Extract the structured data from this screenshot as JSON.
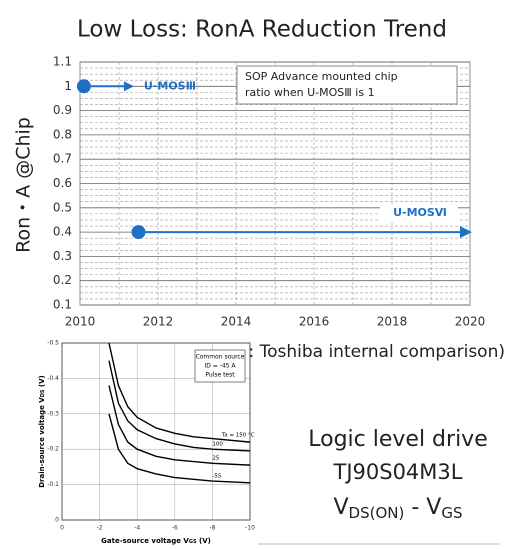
{
  "chart_data": [
    {
      "type": "scatter",
      "title": "Low Loss: RonA Reduction Trend",
      "ylabel": "Ron・A  @Chip",
      "xlim": [
        2010,
        2020
      ],
      "xticks": [
        2010,
        2012,
        2014,
        2016,
        2018,
        2020
      ],
      "ylim": [
        0.1,
        1.1
      ],
      "yticks": [
        0.1,
        0.2,
        0.3,
        0.4,
        0.5,
        0.6,
        0.7,
        0.8,
        0.9,
        1,
        1.1
      ],
      "grid": true,
      "series": [
        {
          "name": "U-MOSⅢ",
          "color": "#1f6fc4",
          "x": [
            2010.1
          ],
          "values": [
            1
          ]
        },
        {
          "name": "U-MOSⅥ",
          "color": "#1f6fc4",
          "x": [
            2011.5
          ],
          "values": [
            0.4
          ]
        }
      ],
      "annotation": [
        "SOP Advance mounted chip",
        "ratio when U-MOSⅢ is 1"
      ],
      "note": "(Note: Toshiba internal comparison)"
    },
    {
      "type": "line",
      "xlabel": [
        "Gate-source voltage  V",
        "GS",
        "  (V)"
      ],
      "ylabel": [
        "Drain-source voltage  V",
        "DS",
        "  (V)"
      ],
      "xlim": [
        0,
        -10
      ],
      "xticks": [
        0,
        -2,
        -4,
        -6,
        -8,
        -10
      ],
      "ylim": [
        0,
        -0.5
      ],
      "yticks": [
        0,
        -0.1,
        -0.2,
        -0.3,
        -0.4,
        -0.5
      ],
      "x": [
        -2.5,
        -3,
        -3.5,
        -4,
        -5,
        -6,
        -7,
        -8,
        -10
      ],
      "series": [
        {
          "name": "Ta = 150 °C",
          "color": "#000",
          "values": [
            -0.5,
            -0.38,
            -0.32,
            -0.29,
            -0.26,
            -0.245,
            -0.235,
            -0.23,
            -0.22
          ]
        },
        {
          "name": "100",
          "color": "#000",
          "values": [
            -0.45,
            -0.33,
            -0.28,
            -0.255,
            -0.23,
            -0.215,
            -0.205,
            -0.2,
            -0.195
          ]
        },
        {
          "name": "25",
          "color": "#000",
          "values": [
            -0.38,
            -0.27,
            -0.22,
            -0.2,
            -0.18,
            -0.17,
            -0.165,
            -0.16,
            -0.155
          ]
        },
        {
          "name": "-55",
          "color": "#000",
          "values": [
            -0.3,
            -0.2,
            -0.16,
            -0.145,
            -0.13,
            -0.12,
            -0.115,
            -0.11,
            -0.105
          ]
        }
      ],
      "annotation": [
        "Common source",
        "ID = -45 A",
        "Pulse test"
      ]
    }
  ],
  "caption": {
    "lines": [
      "Logic level drive",
      "TJ90S04M3L"
    ],
    "formula": [
      "V",
      "DS(ON)",
      " - ",
      "V",
      "GS"
    ]
  }
}
